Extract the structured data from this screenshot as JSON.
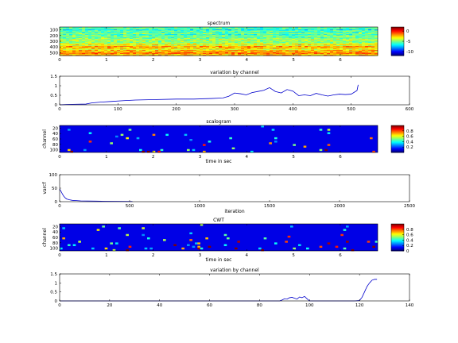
{
  "chart_data": [
    {
      "type": "heatmap",
      "title": "spectrum",
      "xlabel": "",
      "ylabel": "",
      "xlim": [
        0,
        6.8
      ],
      "ylim": [
        0,
        512
      ],
      "x_ticks": [
        "0",
        "1",
        "2",
        "3",
        "4",
        "5",
        "6"
      ],
      "y_ticks": [
        "100",
        "200",
        "300",
        "400",
        "500"
      ],
      "colorbar": {
        "ticks": [
          "0",
          "-5",
          "-10"
        ],
        "range": [
          -12,
          2
        ]
      },
      "rows": [
        -6,
        -6,
        -5,
        -6,
        -7,
        -6,
        -6,
        -5,
        -6,
        -6,
        -5,
        -5,
        -6,
        -6,
        -5,
        -5,
        -5,
        -6,
        -5,
        -5,
        -4,
        -5,
        -5,
        -4,
        -5,
        -5,
        -5,
        -4,
        -4,
        -3,
        -3,
        -4,
        -2,
        -2,
        -3,
        -2,
        -3,
        -4,
        -3,
        -2,
        -3,
        -2,
        -1,
        -2,
        -1,
        -2,
        -3,
        -2
      ],
      "colormap": "jet"
    },
    {
      "type": "line",
      "title": "variation by channel",
      "xlabel": "",
      "ylabel": "",
      "xlim": [
        0,
        600
      ],
      "ylim": [
        0,
        1.5
      ],
      "x_ticks": [
        "0",
        "100",
        "200",
        "300",
        "400",
        "500",
        "600"
      ],
      "y_ticks": [
        "0",
        "0.5",
        "1",
        "1.5"
      ],
      "series": [
        {
          "x": [
            0,
            15,
            30,
            45,
            55,
            70,
            90,
            110,
            130,
            160,
            200,
            230,
            260,
            280,
            290,
            300,
            310,
            320,
            330,
            340,
            350,
            360,
            370,
            380,
            390,
            400,
            410,
            420,
            430,
            440,
            450,
            460,
            470,
            480,
            490,
            500,
            510,
            512
          ],
          "y": [
            0.0,
            0.02,
            0.03,
            0.04,
            0.1,
            0.14,
            0.18,
            0.22,
            0.25,
            0.27,
            0.3,
            0.3,
            0.33,
            0.36,
            0.45,
            0.62,
            0.58,
            0.52,
            0.64,
            0.7,
            0.76,
            0.9,
            0.7,
            0.62,
            0.8,
            0.72,
            0.48,
            0.52,
            0.48,
            0.6,
            0.52,
            0.46,
            0.52,
            0.56,
            0.54,
            0.56,
            0.75,
            1.05
          ]
        }
      ]
    },
    {
      "type": "heatmap",
      "title": "scalogram",
      "xlabel": "time in sec",
      "ylabel": "channel",
      "xlim": [
        0,
        6.8
      ],
      "ylim": [
        0,
        32
      ],
      "x_ticks": [
        "0",
        "1",
        "2",
        "3",
        "4",
        "5",
        "6"
      ],
      "y_ticks": [
        "20",
        "40",
        "60",
        "80",
        "100"
      ],
      "colorbar": {
        "ticks": [
          "0.8",
          "0.6",
          "0.4",
          "0.2"
        ],
        "range": [
          0,
          1
        ]
      },
      "colormap": "jet"
    },
    {
      "type": "line",
      "title": "",
      "xlabel": "iteration",
      "ylabel": "varcf",
      "xlim": [
        0,
        2500
      ],
      "ylim": [
        0,
        100
      ],
      "x_ticks": [
        "0",
        "500",
        "1000",
        "1500",
        "2000",
        "2500"
      ],
      "y_ticks": [
        "0",
        "50",
        "100"
      ],
      "series": [
        {
          "x": [
            0,
            10,
            20,
            30,
            40,
            50,
            70,
            90,
            120,
            150,
            200,
            260,
            330,
            420,
            520
          ],
          "y": [
            47,
            38,
            28,
            20,
            14,
            10,
            7,
            5,
            4,
            3,
            2.5,
            2,
            1.5,
            1,
            0.8
          ]
        }
      ]
    },
    {
      "type": "heatmap",
      "title": "CWT",
      "xlabel": "time in sec",
      "ylabel": "channel",
      "xlim": [
        0,
        6.8
      ],
      "ylim": [
        0,
        32
      ],
      "x_ticks": [
        "0",
        "1",
        "2",
        "3",
        "4",
        "5",
        "6"
      ],
      "y_ticks": [
        "20",
        "40",
        "60",
        "80",
        "100"
      ],
      "colorbar": {
        "ticks": [
          "0.8",
          "0.6",
          "0.4",
          "0.2",
          "0"
        ],
        "range": [
          0,
          1
        ]
      },
      "colormap": "jet"
    },
    {
      "type": "line",
      "title": "variation by channel",
      "xlabel": "",
      "ylabel": "",
      "xlim": [
        0,
        140
      ],
      "ylim": [
        0,
        1.5
      ],
      "x_ticks": [
        "0",
        "20",
        "40",
        "60",
        "80",
        "100",
        "120",
        "140"
      ],
      "y_ticks": [
        "0",
        "0.5",
        "1",
        "1.5"
      ],
      "series": [
        {
          "x": [
            0,
            20,
            40,
            60,
            80,
            88,
            89,
            90,
            91,
            92,
            93,
            94,
            95,
            96,
            97,
            98,
            99,
            100,
            101,
            102,
            104,
            110,
            118,
            120,
            121,
            122,
            123,
            124,
            125,
            126,
            127
          ],
          "y": [
            0,
            0,
            0,
            0,
            0,
            0,
            0.05,
            0.12,
            0.1,
            0.18,
            0.2,
            0.15,
            0.1,
            0.22,
            0.18,
            0.25,
            0.12,
            0.0,
            0,
            0,
            0,
            0,
            0,
            0.02,
            0.2,
            0.5,
            0.8,
            1.0,
            1.15,
            1.2,
            1.2
          ]
        }
      ]
    }
  ]
}
